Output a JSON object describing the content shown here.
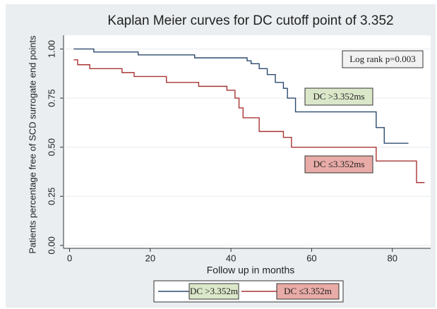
{
  "chart_data": {
    "type": "line",
    "step": true,
    "title": "Kaplan Meier curves for DC cutoff point of 3.352",
    "x_label": "Follow up in months",
    "y_label": "Patients percentage free of SCD surrogate end points",
    "xlim": [
      -1.5,
      89.5
    ],
    "ylim": [
      -0.015,
      1.07
    ],
    "xticks": [
      0,
      20,
      40,
      60,
      80
    ],
    "yticks": [
      {
        "value": 0,
        "label": "0.00"
      },
      {
        "value": 0.25,
        "label": "0.25"
      },
      {
        "value": 0.5,
        "label": "0.50"
      },
      {
        "value": 0.75,
        "label": "0.75"
      },
      {
        "value": 1,
        "label": "1.00"
      }
    ],
    "grid": true,
    "series": [
      {
        "name": "DC >3.352m",
        "color": "#2d4a6e",
        "x": [
          1,
          6,
          17,
          31,
          44,
          45,
          47,
          49,
          51,
          53,
          54,
          56,
          76,
          78,
          84
        ],
        "values": [
          1.0,
          0.985,
          0.97,
          0.955,
          0.94,
          0.925,
          0.9,
          0.87,
          0.83,
          0.8,
          0.75,
          0.68,
          0.6,
          0.52,
          0.52
        ]
      },
      {
        "name": "DC ≤3.352m",
        "color": "#a83434",
        "x": [
          1,
          2,
          5,
          13,
          16,
          24,
          32,
          39,
          41,
          42,
          43,
          47,
          53,
          55,
          76,
          86,
          88
        ],
        "values": [
          0.945,
          0.92,
          0.9,
          0.88,
          0.86,
          0.83,
          0.81,
          0.79,
          0.75,
          0.7,
          0.65,
          0.58,
          0.55,
          0.5,
          0.43,
          0.32,
          0.32
        ]
      }
    ],
    "annotations": [
      {
        "text": "Log rank p=0.003",
        "color": "#f2f2f2"
      },
      {
        "text": "DC >3.352ms",
        "color": "#dbe7c9"
      },
      {
        "text": "DC ≤3.352ms",
        "color": "#e8aba7"
      }
    ],
    "legend_position": "bottom",
    "legend_colors": [
      "#dbe7c9",
      "#e8aba7"
    ]
  }
}
